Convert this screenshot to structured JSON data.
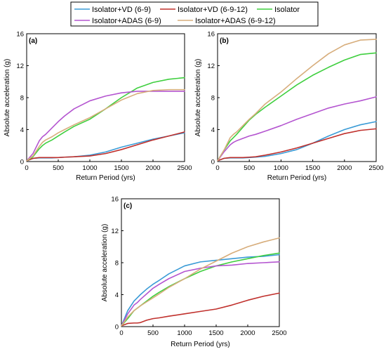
{
  "legend": {
    "items": [
      {
        "label": "Isolator+VD (6-9)",
        "color": "#3a9bd6"
      },
      {
        "label": "Isolator+VD (6-9-12)",
        "color": "#c0302c"
      },
      {
        "label": "Isolator",
        "color": "#3fcf3f"
      },
      {
        "label": "Isolator+ADAS (6-9)",
        "color": "#b455d0"
      },
      {
        "label": "Isolator+ADAS (6-9-12)",
        "color": "#d7ad7b"
      }
    ]
  },
  "chart_data": [
    {
      "type": "line",
      "panel_label": "(a)",
      "xlabel": "Return Period (yrs)",
      "ylabel": "Absolute acceleration (g)",
      "xlim": [
        0,
        2500
      ],
      "ylim": [
        0,
        16
      ],
      "xticks": [
        0,
        500,
        1000,
        1500,
        2000,
        2500
      ],
      "yticks": [
        0,
        4,
        8,
        12,
        16
      ],
      "x": [
        0,
        100,
        200,
        250,
        300,
        400,
        500,
        600,
        750,
        1000,
        1250,
        1500,
        1750,
        2000,
        2250,
        2500
      ],
      "series": [
        {
          "name": "Isolator+VD (6-9)",
          "color": "#3a9bd6",
          "values": [
            0.1,
            0.4,
            0.45,
            0.45,
            0.45,
            0.45,
            0.5,
            0.55,
            0.6,
            0.8,
            1.2,
            1.8,
            2.3,
            2.8,
            3.2,
            3.6
          ]
        },
        {
          "name": "Isolator+VD (6-9-12)",
          "color": "#c0302c",
          "values": [
            0.1,
            0.4,
            0.5,
            0.5,
            0.5,
            0.5,
            0.5,
            0.55,
            0.6,
            0.7,
            1.0,
            1.5,
            2.1,
            2.7,
            3.2,
            3.7
          ]
        },
        {
          "name": "Isolator",
          "color": "#3fcf3f",
          "values": [
            0.1,
            0.6,
            1.6,
            2.0,
            2.3,
            2.7,
            3.2,
            3.7,
            4.4,
            5.3,
            6.6,
            8.0,
            9.2,
            9.9,
            10.3,
            10.5
          ]
        },
        {
          "name": "Isolator+ADAS (6-9)",
          "color": "#b455d0",
          "values": [
            0.1,
            1.0,
            2.6,
            3.1,
            3.4,
            4.2,
            5.0,
            5.7,
            6.6,
            7.6,
            8.2,
            8.6,
            8.8,
            8.8,
            8.8,
            8.8
          ]
        },
        {
          "name": "Isolator+ADAS (6-9-12)",
          "color": "#d7ad7b",
          "values": [
            0.1,
            0.7,
            1.9,
            2.4,
            2.7,
            3.1,
            3.6,
            4.0,
            4.6,
            5.5,
            6.6,
            7.7,
            8.5,
            8.9,
            9.0,
            9.0
          ]
        }
      ]
    },
    {
      "type": "line",
      "panel_label": "(b)",
      "xlabel": "Return Period (yrs)",
      "ylabel": "Absolute acceleration (g)",
      "xlim": [
        0,
        2500
      ],
      "ylim": [
        0,
        16
      ],
      "xticks": [
        0,
        500,
        1000,
        1500,
        2000,
        2500
      ],
      "yticks": [
        0,
        4,
        8,
        12,
        16
      ],
      "x": [
        0,
        100,
        200,
        250,
        300,
        400,
        500,
        600,
        750,
        1000,
        1250,
        1500,
        1750,
        2000,
        2250,
        2500
      ],
      "series": [
        {
          "name": "Isolator+VD (6-9)",
          "color": "#3a9bd6",
          "values": [
            0.1,
            0.4,
            0.45,
            0.45,
            0.45,
            0.45,
            0.5,
            0.55,
            0.65,
            1.0,
            1.5,
            2.3,
            3.2,
            4.0,
            4.6,
            5.0
          ]
        },
        {
          "name": "Isolator+VD (6-9-12)",
          "color": "#c0302c",
          "values": [
            0.1,
            0.4,
            0.5,
            0.5,
            0.5,
            0.5,
            0.55,
            0.6,
            0.8,
            1.2,
            1.7,
            2.3,
            2.9,
            3.5,
            3.9,
            4.1
          ]
        },
        {
          "name": "Isolator",
          "color": "#3fcf3f",
          "values": [
            0.1,
            1.4,
            2.6,
            3.0,
            3.4,
            4.3,
            5.2,
            5.9,
            6.8,
            8.2,
            9.6,
            10.8,
            11.8,
            12.7,
            13.4,
            13.6
          ]
        },
        {
          "name": "Isolator+ADAS (6-9)",
          "color": "#b455d0",
          "values": [
            0.1,
            1.2,
            2.1,
            2.4,
            2.6,
            2.9,
            3.2,
            3.4,
            3.8,
            4.5,
            5.3,
            6.0,
            6.7,
            7.2,
            7.6,
            8.1
          ]
        },
        {
          "name": "Isolator+ADAS (6-9-12)",
          "color": "#d7ad7b",
          "values": [
            0.1,
            1.4,
            3.0,
            3.4,
            3.7,
            4.5,
            5.3,
            6.0,
            7.2,
            8.7,
            10.4,
            12.0,
            13.5,
            14.6,
            15.2,
            15.3
          ]
        }
      ]
    },
    {
      "type": "line",
      "panel_label": "(c)",
      "xlabel": "Return Period (yrs)",
      "ylabel": "Absolute acceleration (g)",
      "xlim": [
        0,
        2500
      ],
      "ylim": [
        0,
        16
      ],
      "xticks": [
        0,
        500,
        1000,
        1500,
        2000,
        2500
      ],
      "yticks": [
        0,
        4,
        8,
        12,
        16
      ],
      "x": [
        0,
        100,
        200,
        250,
        300,
        400,
        500,
        600,
        750,
        1000,
        1250,
        1500,
        1750,
        2000,
        2250,
        2500
      ],
      "series": [
        {
          "name": "Isolator+VD (6-9)",
          "color": "#3a9bd6",
          "values": [
            0.1,
            2.0,
            3.2,
            3.6,
            4.0,
            4.7,
            5.3,
            5.8,
            6.6,
            7.6,
            8.1,
            8.3,
            8.5,
            8.7,
            8.8,
            9.0
          ]
        },
        {
          "name": "Isolator+VD (6-9-12)",
          "color": "#c0302c",
          "values": [
            0.1,
            0.4,
            0.45,
            0.45,
            0.5,
            0.8,
            1.0,
            1.1,
            1.3,
            1.6,
            1.9,
            2.2,
            2.7,
            3.3,
            3.8,
            4.2
          ]
        },
        {
          "name": "Isolator",
          "color": "#3fcf3f",
          "values": [
            0.1,
            1.0,
            2.0,
            2.3,
            2.6,
            3.2,
            3.8,
            4.3,
            5.0,
            6.0,
            6.9,
            7.6,
            8.1,
            8.5,
            8.9,
            9.2
          ]
        },
        {
          "name": "Isolator+ADAS (6-9)",
          "color": "#b455d0",
          "values": [
            0.1,
            1.6,
            2.7,
            3.0,
            3.4,
            4.1,
            4.8,
            5.3,
            6.0,
            6.9,
            7.3,
            7.6,
            7.7,
            7.9,
            8.0,
            8.1
          ]
        },
        {
          "name": "Isolator+ADAS (6-9-12)",
          "color": "#d7ad7b",
          "values": [
            0.1,
            1.2,
            2.0,
            2.3,
            2.6,
            3.1,
            3.6,
            4.1,
            4.9,
            6.0,
            7.2,
            8.2,
            9.2,
            10.0,
            10.6,
            11.1
          ]
        }
      ]
    }
  ]
}
